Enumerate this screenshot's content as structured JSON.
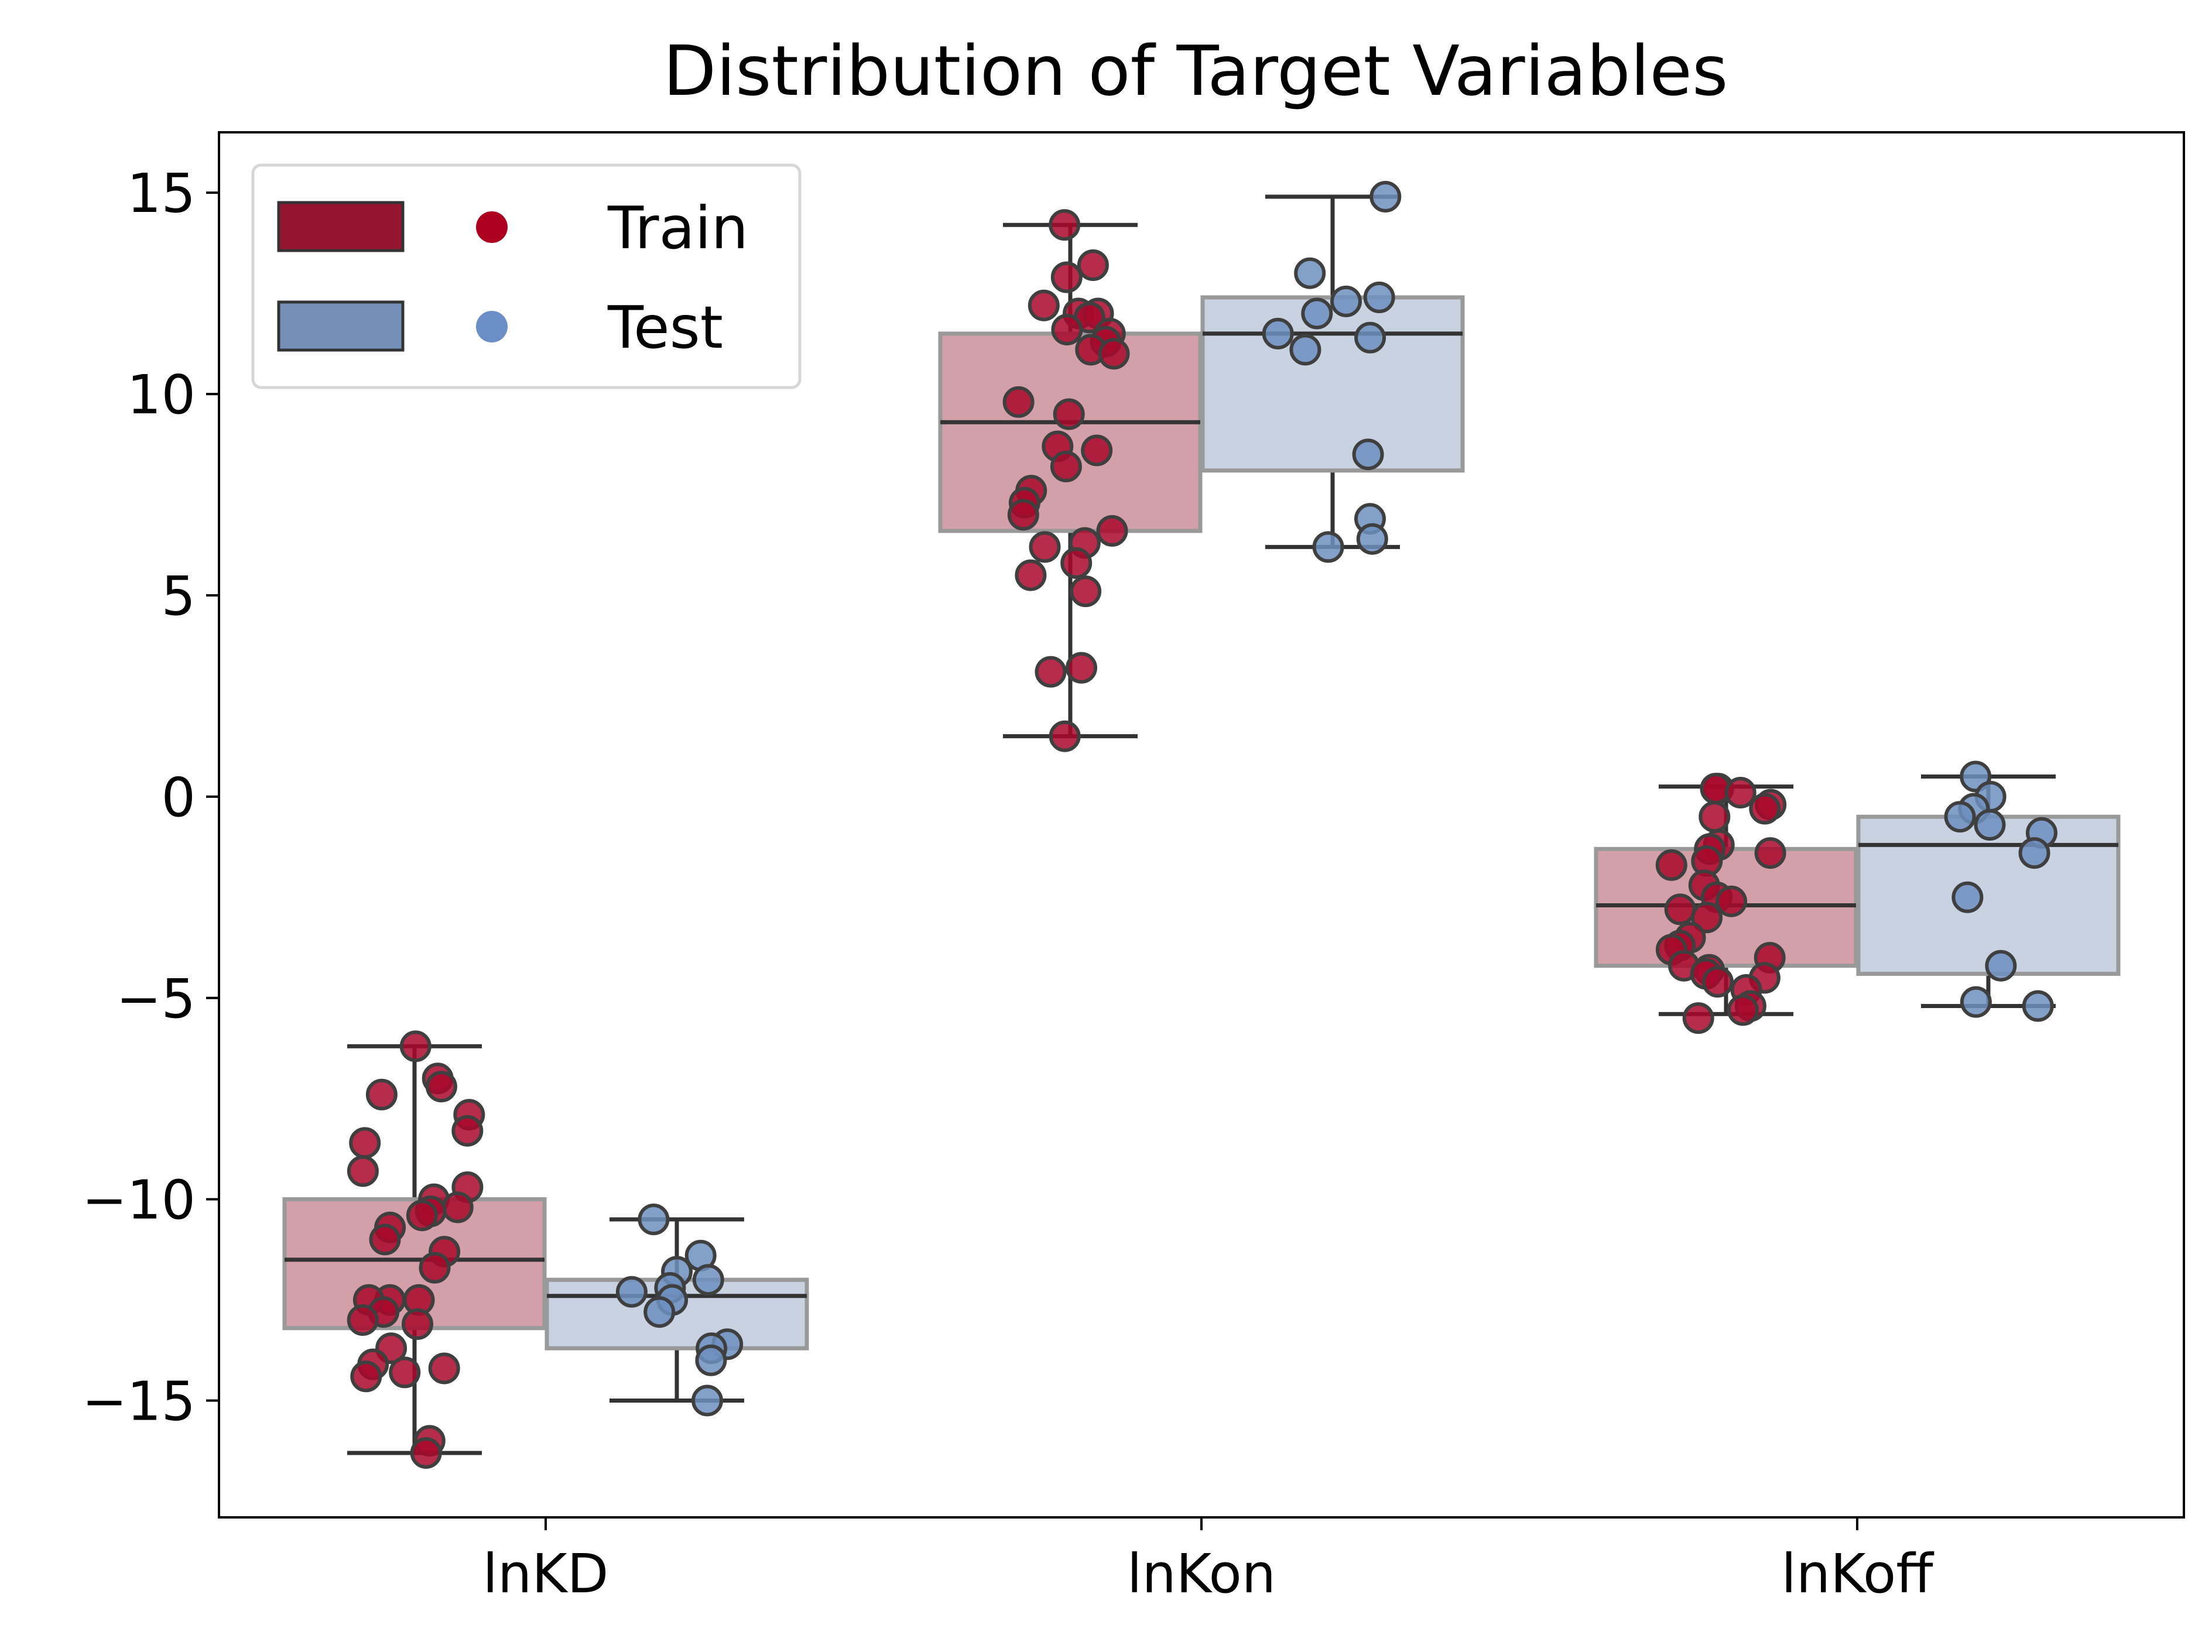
{
  "chart_data": {
    "type": "box",
    "title": "Distribution of Target Variables",
    "xlabel": "",
    "ylabel": "",
    "categories": [
      "lnKD",
      "lnKon",
      "lnKoff"
    ],
    "ylim": [
      -17.9,
      16.5
    ],
    "yticks": [
      15,
      10,
      5,
      0,
      -5,
      -10,
      -15
    ],
    "ytick_labels": [
      "15",
      "10",
      "5",
      "0",
      "−5",
      "−10",
      "−15"
    ],
    "grid": false,
    "legend_position": "top-left",
    "series": [
      {
        "name": "Train",
        "box_color": "#d3a0aa",
        "point_color": "#a8082a",
        "legend_patch_color": "#951530",
        "legend_dot_color": "#ad0021",
        "boxes": [
          {
            "category": "lnKD",
            "whisker_low": -16.3,
            "q1": -13.2,
            "median": -11.5,
            "q3": -10.0,
            "whisker_high": -6.2
          },
          {
            "category": "lnKon",
            "whisker_low": 1.5,
            "q1": 6.6,
            "median": 9.3,
            "q3": 11.5,
            "whisker_high": 14.2
          },
          {
            "category": "lnKoff",
            "whisker_low": -5.4,
            "q1": -4.2,
            "median": -2.7,
            "q3": -1.3,
            "whisker_high": 0.25
          }
        ],
        "points": {
          "lnKD": [
            -6.2,
            -7.0,
            -7.2,
            -7.4,
            -7.9,
            -8.3,
            -8.6,
            -9.3,
            -9.7,
            -10.0,
            -10.2,
            -10.3,
            -10.4,
            -10.7,
            -11.0,
            -11.3,
            -11.7,
            -12.5,
            -12.5,
            -12.5,
            -12.8,
            -13.0,
            -13.1,
            -13.7,
            -14.1,
            -14.2,
            -14.3,
            -14.4,
            -16.0,
            -16.3
          ],
          "lnKon": [
            14.2,
            13.2,
            12.9,
            12.2,
            12.0,
            12.0,
            11.9,
            11.6,
            11.5,
            11.3,
            11.1,
            11.0,
            9.8,
            9.5,
            8.7,
            8.6,
            8.2,
            7.6,
            7.3,
            7.0,
            6.6,
            6.3,
            6.2,
            5.8,
            5.5,
            5.1,
            3.2,
            3.1,
            1.5
          ],
          "lnKoff": [
            0.2,
            0.2,
            0.1,
            -0.2,
            -0.3,
            -0.5,
            -1.2,
            -1.3,
            -1.4,
            -1.6,
            -1.7,
            -2.2,
            -2.5,
            -2.6,
            -2.8,
            -3.0,
            -3.5,
            -3.7,
            -3.8,
            -4.0,
            -4.2,
            -4.3,
            -4.4,
            -4.5,
            -4.6,
            -4.8,
            -5.2,
            -5.3,
            -5.5
          ]
        }
      },
      {
        "name": "Test",
        "box_color": "#c8d2e1",
        "point_color": "#6d8fc0",
        "legend_patch_color": "#7590b8",
        "legend_dot_color": "#6a8ec5",
        "boxes": [
          {
            "category": "lnKD",
            "whisker_low": -15.0,
            "q1": -13.7,
            "median": -12.4,
            "q3": -12.0,
            "whisker_high": -10.5
          },
          {
            "category": "lnKon",
            "whisker_low": 6.2,
            "q1": 8.1,
            "median": 11.5,
            "q3": 12.4,
            "whisker_high": 14.9
          },
          {
            "category": "lnKoff",
            "whisker_low": -5.2,
            "q1": -4.4,
            "median": -1.2,
            "q3": -0.5,
            "whisker_high": 0.5
          }
        ],
        "points": {
          "lnKD": [
            -10.5,
            -11.4,
            -11.8,
            -12.0,
            -12.2,
            -12.3,
            -12.5,
            -12.8,
            -13.6,
            -13.7,
            -14.0,
            -15.0
          ],
          "lnKon": [
            14.9,
            13.0,
            12.4,
            12.3,
            12.0,
            11.5,
            11.4,
            11.1,
            8.5,
            6.9,
            6.4,
            6.2
          ],
          "lnKoff": [
            0.5,
            0.0,
            -0.3,
            -0.5,
            -0.7,
            -0.9,
            -1.4,
            -2.5,
            -4.2,
            -5.1,
            -5.2
          ]
        }
      }
    ]
  }
}
